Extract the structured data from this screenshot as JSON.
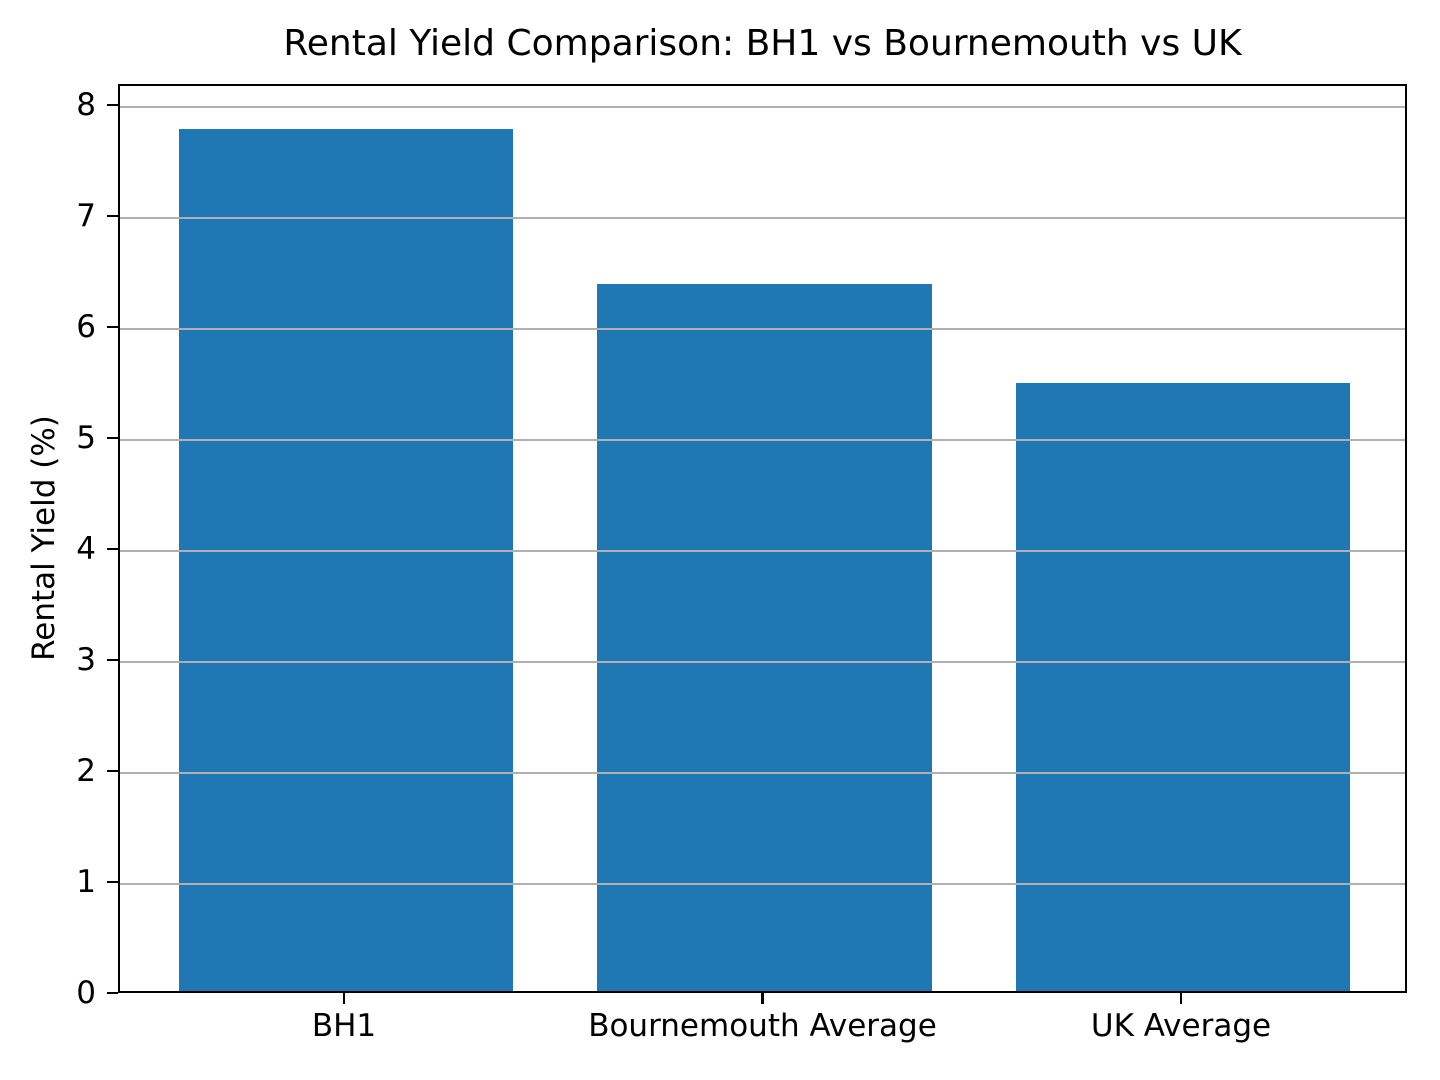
{
  "chart_data": {
    "type": "bar",
    "title": "Rental Yield Comparison: BH1 vs Bournemouth vs UK",
    "categories": [
      "BH1",
      "Bournemouth Average",
      "UK Average"
    ],
    "values": [
      7.8,
      6.4,
      5.5
    ],
    "xlabel": "",
    "ylabel": "Rental Yield (%)",
    "ylim": [
      0,
      8.19
    ],
    "yticks": [
      0,
      1,
      2,
      3,
      4,
      5,
      6,
      7,
      8
    ],
    "grid": "horizontal-on-top-of-bars",
    "legend": "none",
    "bar_color": "#1f77b4",
    "grid_color": "#b0b0b0",
    "axis_color": "#000000",
    "background_color": "#ffffff"
  }
}
